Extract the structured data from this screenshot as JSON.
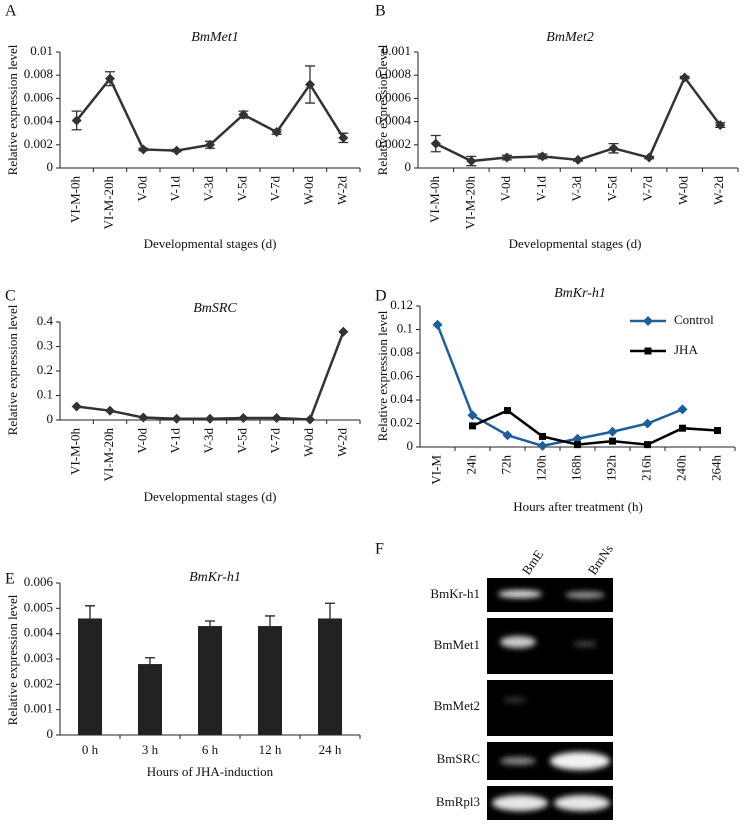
{
  "chart_data": [
    {
      "panel": "A",
      "type": "line",
      "title": "BmMet1",
      "ylabel": "Relative expression level",
      "xlabel": "Developmental stages (d)",
      "categories": [
        "VI-M-0h",
        "VI-M-20h",
        "V-0d",
        "V-1d",
        "V-3d",
        "V-5d",
        "V-7d",
        "W-0d",
        "W-2d"
      ],
      "values": [
        0.0041,
        0.0077,
        0.0016,
        0.0015,
        0.002,
        0.0046,
        0.0031,
        0.0072,
        0.0026
      ],
      "errors": [
        0.0008,
        0.0006,
        0.0001,
        0.0001,
        0.0003,
        0.0003,
        0.0002,
        0.0016,
        0.0004
      ],
      "color": "#333333",
      "ylim": [
        0,
        0.01
      ],
      "yticks": [
        0,
        0.002,
        0.004,
        0.006,
        0.008,
        0.01
      ]
    },
    {
      "panel": "B",
      "type": "line",
      "title": "BmMet2",
      "ylabel": "Relative expression level",
      "xlabel": "Developmental stages (d)",
      "categories": [
        "VI-M-0h",
        "VI-M-20h",
        "V-0d",
        "V-1d",
        "V-3d",
        "V-5d",
        "V-7d",
        "W-0d",
        "W-2d"
      ],
      "values": [
        0.00021,
        6e-05,
        9e-05,
        0.0001,
        7e-05,
        0.00017,
        9e-05,
        0.00078,
        0.00037
      ],
      "errors": [
        7e-05,
        4e-05,
        2e-05,
        2e-05,
        1e-05,
        4e-05,
        1e-05,
        1e-05,
        2e-05
      ],
      "color": "#333333",
      "ylim": [
        0,
        0.001
      ],
      "yticks": [
        0,
        0.0002,
        0.0004,
        0.0006,
        0.0008,
        0.001
      ]
    },
    {
      "panel": "C",
      "type": "line",
      "title": "BmSRC",
      "ylabel": "Relative expression level",
      "xlabel": "Developmental stages (d)",
      "categories": [
        "VI-M-0h",
        "VI-M-20h",
        "V-0d",
        "V-1d",
        "V-3d",
        "V-5d",
        "V-7d",
        "W-0d",
        "W-2d"
      ],
      "values": [
        0.055,
        0.038,
        0.01,
        0.005,
        0.005,
        0.008,
        0.008,
        0.002,
        0.36
      ],
      "color": "#333333",
      "ylim": [
        0,
        0.4
      ],
      "yticks": [
        0,
        0.1,
        0.2,
        0.3,
        0.4
      ]
    },
    {
      "panel": "D",
      "type": "line",
      "title": "BmKr-h1",
      "ylabel": "Relative expression level",
      "xlabel": "Hours after treatment (h)",
      "categories": [
        "VI-M",
        "24h",
        "72h",
        "120h",
        "168h",
        "192h",
        "216h",
        "240h",
        "264h"
      ],
      "series": [
        {
          "name": "Control",
          "color": "#1f5f99",
          "marker": "diamond",
          "values": [
            0.104,
            0.027,
            0.01,
            0.001,
            0.007,
            0.013,
            0.02,
            0.032,
            null
          ]
        },
        {
          "name": "JHA",
          "color": "#000000",
          "marker": "square",
          "values": [
            null,
            0.018,
            0.031,
            0.009,
            0.002,
            0.005,
            0.002,
            0.016,
            0.014
          ]
        }
      ],
      "legend": "upper right",
      "ylim": [
        0,
        0.12
      ],
      "yticks": [
        0,
        0.02,
        0.04,
        0.06,
        0.08,
        0.1,
        0.12
      ]
    },
    {
      "panel": "E",
      "type": "bar",
      "title": "BmKr-h1",
      "ylabel": "Relative expression level",
      "xlabel": "Hours of JHA-induction",
      "categories": [
        "0 h",
        "3 h",
        "6 h",
        "12 h",
        "24 h"
      ],
      "values": [
        0.0046,
        0.0028,
        0.0043,
        0.0043,
        0.0046
      ],
      "errors": [
        0.0005,
        0.00025,
        0.0002,
        0.0004,
        0.0006
      ],
      "color": "#222222",
      "ylim": [
        0,
        0.006
      ],
      "yticks": [
        0,
        0.001,
        0.002,
        0.003,
        0.004,
        0.005,
        0.006
      ]
    }
  ],
  "gel": {
    "panel": "F",
    "lanes": [
      "BmE",
      "BmNs"
    ],
    "rows": [
      "BmKr-h1",
      "BmMet1",
      "BmMet2",
      "BmSRC",
      "BmRpl3"
    ]
  }
}
